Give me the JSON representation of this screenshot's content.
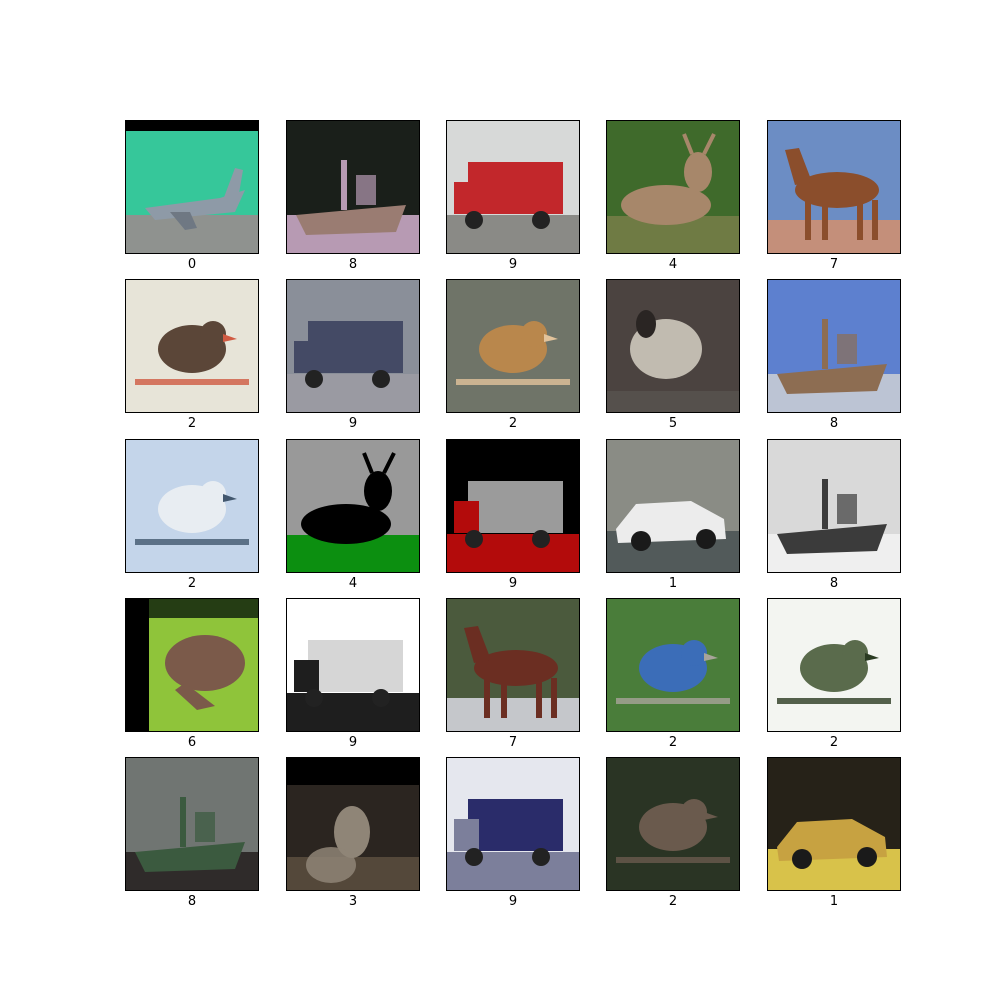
{
  "images": [
    {
      "label": "0",
      "subject": "airplane",
      "colors": {
        "bg": "#36c79a",
        "main": "#8e9aa7",
        "ground": "#8f928f"
      }
    },
    {
      "label": "8",
      "subject": "ship",
      "colors": {
        "bg": "#1a1f1a",
        "main": "#9a7c72",
        "accent": "#b79ab3"
      }
    },
    {
      "label": "9",
      "subject": "truck",
      "colors": {
        "bg": "#d7d9d8",
        "main": "#c2272b",
        "ground": "#8a8a86"
      }
    },
    {
      "label": "4",
      "subject": "deer",
      "colors": {
        "bg": "#3f6a2b",
        "main": "#a7876a",
        "ground": "#6f7b44"
      }
    },
    {
      "label": "7",
      "subject": "horse",
      "colors": {
        "bg": "#6c8dc4",
        "main": "#8b4e2c",
        "ground": "#c48f7a"
      }
    },
    {
      "label": "2",
      "subject": "bird",
      "colors": {
        "bg": "#e7e4d8",
        "main": "#5b4638",
        "accent": "#d05a42"
      }
    },
    {
      "label": "9",
      "subject": "truck",
      "colors": {
        "bg": "#8a8f99",
        "main": "#444a65",
        "ground": "#9a9aa2"
      }
    },
    {
      "label": "2",
      "subject": "bird",
      "colors": {
        "bg": "#6f7468",
        "main": "#b9874c",
        "accent": "#e2c39b"
      }
    },
    {
      "label": "5",
      "subject": "dog",
      "colors": {
        "bg": "#4b4340",
        "main": "#c1bbb0",
        "ground": "#55504c"
      }
    },
    {
      "label": "8",
      "subject": "ship",
      "colors": {
        "bg": "#5d80cf",
        "main": "#8d6d52",
        "ground": "#bcc4d4"
      }
    },
    {
      "label": "2",
      "subject": "bird",
      "colors": {
        "bg": "#c4d5ea",
        "main": "#e8edf2",
        "accent": "#42576e"
      }
    },
    {
      "label": "4",
      "subject": "deer",
      "colors": {
        "bg": "#999999",
        "main": "#000000",
        "accent": "#0c8f10"
      }
    },
    {
      "label": "9",
      "subject": "truck",
      "colors": {
        "bg": "#000000",
        "main": "#9b9b9b",
        "accent": "#b30b0b"
      }
    },
    {
      "label": "1",
      "subject": "automobile",
      "colors": {
        "bg": "#8a8c85",
        "main": "#ececec",
        "ground": "#525a5a"
      }
    },
    {
      "label": "8",
      "subject": "ship",
      "colors": {
        "bg": "#d9d9d9",
        "main": "#3b3b3b",
        "ground": "#efefef"
      }
    },
    {
      "label": "6",
      "subject": "frog",
      "colors": {
        "bg": "#8fc43a",
        "main": "#7b5a4a",
        "ground": "#253d14"
      }
    },
    {
      "label": "9",
      "subject": "truck",
      "colors": {
        "bg": "#ffffff",
        "main": "#d6d6d6",
        "accent": "#1e1e1e"
      }
    },
    {
      "label": "7",
      "subject": "horse",
      "colors": {
        "bg": "#4b5a3d",
        "main": "#6b2e22",
        "ground": "#c5c7cb"
      }
    },
    {
      "label": "2",
      "subject": "bird",
      "colors": {
        "bg": "#4a7d3a",
        "main": "#3b6db8",
        "accent": "#a8a49a"
      }
    },
    {
      "label": "2",
      "subject": "bird",
      "colors": {
        "bg": "#f3f5f1",
        "main": "#5a6b4c",
        "accent": "#2a3b22"
      }
    },
    {
      "label": "8",
      "subject": "ship",
      "colors": {
        "bg": "#707572",
        "main": "#3b5a3f",
        "ground": "#2f2b2a"
      }
    },
    {
      "label": "3",
      "subject": "cat",
      "colors": {
        "bg": "#2b2520",
        "main": "#8f8577",
        "ground": "#54483a"
      }
    },
    {
      "label": "9",
      "subject": "truck",
      "colors": {
        "bg": "#e5e7ee",
        "main": "#2a2c6a",
        "accent": "#7c7f9b"
      }
    },
    {
      "label": "2",
      "subject": "bird",
      "colors": {
        "bg": "#2a3424",
        "main": "#6a5a4d",
        "ground": "#3a4532"
      }
    },
    {
      "label": "1",
      "subject": "automobile",
      "colors": {
        "bg": "#262218",
        "main": "#c7a241",
        "accent": "#d8c24a"
      }
    }
  ]
}
